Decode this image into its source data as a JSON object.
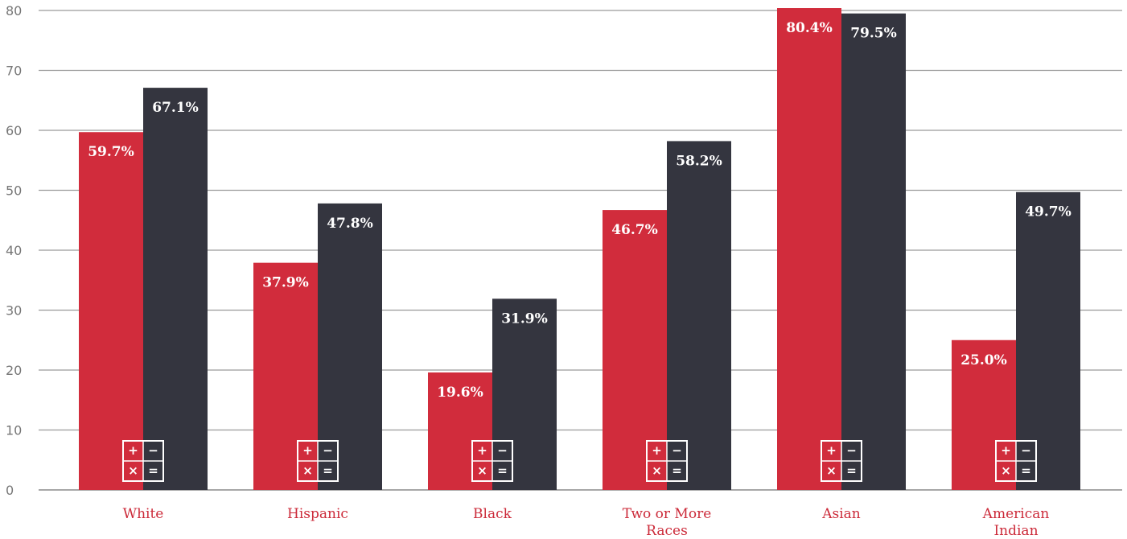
{
  "chart_data": {
    "type": "bar",
    "categories": [
      "White",
      "Hispanic",
      "Black",
      "Two or More Races",
      "Asian",
      "American Indian"
    ],
    "category_lines": [
      [
        "White"
      ],
      [
        "Hispanic"
      ],
      [
        "Black"
      ],
      [
        "Two or More",
        "Races"
      ],
      [
        "Asian"
      ],
      [
        "American",
        "Indian"
      ]
    ],
    "series": [
      {
        "values": [
          59.7,
          37.9,
          19.6,
          46.7,
          80.4,
          25.0
        ],
        "labels": [
          "59.7%",
          "37.9%",
          "19.6%",
          "46.7%",
          "80.4%",
          "25.0%"
        ],
        "color": "#d12c3c"
      },
      {
        "values": [
          67.1,
          47.8,
          31.9,
          58.2,
          79.5,
          49.7
        ],
        "labels": [
          "67.1%",
          "47.8%",
          "31.9%",
          "58.2%",
          "79.5%",
          "49.7%"
        ],
        "color": "#34353f"
      }
    ],
    "ylim": [
      0,
      80
    ],
    "yticks": [
      0,
      10,
      20,
      30,
      40,
      50,
      60,
      70,
      80
    ],
    "grid": true,
    "xlabel": "",
    "ylabel": "",
    "title": "",
    "category_label_color": "#cc2b3a",
    "icon": {
      "name": "calculator-icon",
      "glyphs": [
        "+",
        "−",
        "×",
        "="
      ]
    }
  }
}
